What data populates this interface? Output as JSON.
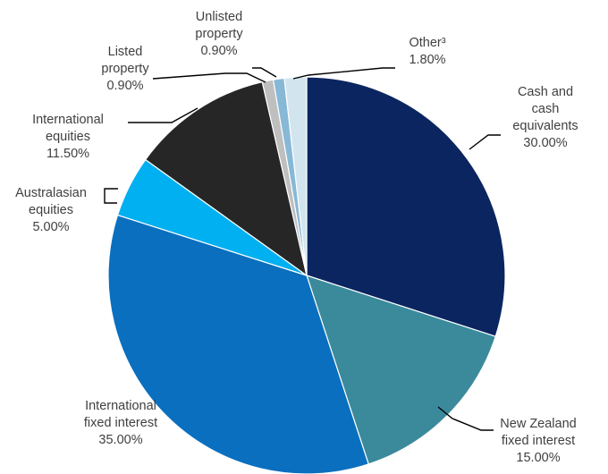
{
  "chart_data": {
    "type": "pie",
    "start_angle_deg": 0,
    "direction": "clockwise",
    "legend": "none",
    "slices": [
      {
        "label_lines": [
          "Cash and",
          "cash",
          "equivalents"
        ],
        "value": 30.0,
        "value_label": "30.00%",
        "color": "#0b2560"
      },
      {
        "label_lines": [
          "New Zealand",
          "fixed interest"
        ],
        "value": 15.0,
        "value_label": "15.00%",
        "color": "#3a8a9c"
      },
      {
        "label_lines": [
          "International",
          "fixed interest"
        ],
        "value": 35.0,
        "value_label": "35.00%",
        "color": "#0a6fbf"
      },
      {
        "label_lines": [
          "Australasian",
          "equities"
        ],
        "value": 5.0,
        "value_label": "5.00%",
        "color": "#00b0f0"
      },
      {
        "label_lines": [
          "International",
          "equities"
        ],
        "value": 11.5,
        "value_label": "11.50%",
        "color": "#262626"
      },
      {
        "label_lines": [
          "Listed",
          "property"
        ],
        "value": 0.9,
        "value_label": "0.90%",
        "color": "#bfbfbf"
      },
      {
        "label_lines": [
          "Unlisted",
          "property"
        ],
        "value": 0.9,
        "value_label": "0.90%",
        "color": "#87b8d6"
      },
      {
        "label_lines": [
          "Other³"
        ],
        "value": 1.8,
        "value_label": "1.80%",
        "color": "#d2e5ef"
      }
    ]
  }
}
